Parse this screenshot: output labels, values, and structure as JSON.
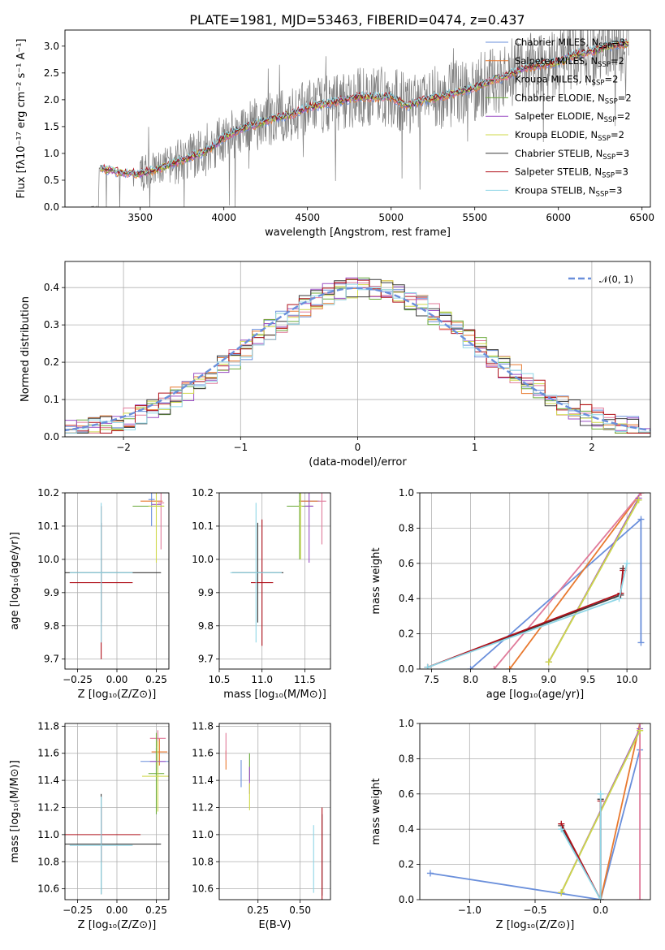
{
  "figure": {
    "title": "PLATE=1981, MJD=53463, FIBERID=0474, z=0.437"
  },
  "models": [
    {
      "name": "Chabrier MILES",
      "nssp": "3",
      "color": "#6a8fdb"
    },
    {
      "name": "Salpeter MILES",
      "nssp": "2",
      "color": "#e8792f"
    },
    {
      "name": "Kroupa MILES",
      "nssp": "2",
      "color": "#e07a9a"
    },
    {
      "name": "Chabrier ELODIE",
      "nssp": "2",
      "color": "#6aaa3a"
    },
    {
      "name": "Salpeter ELODIE",
      "nssp": "2",
      "color": "#9b4fc4"
    },
    {
      "name": "Kroupa ELODIE",
      "nssp": "2",
      "color": "#cfd84a"
    },
    {
      "name": "Chabrier STELIB",
      "nssp": "3",
      "color": "#3a3a3a"
    },
    {
      "name": "Salpeter STELIB",
      "nssp": "3",
      "color": "#b0101a"
    },
    {
      "name": "Kroupa STELIB",
      "nssp": "3",
      "color": "#8fd6e6"
    }
  ],
  "chart_data": [
    {
      "id": "spectrum",
      "type": "line",
      "xlabel": "wavelength [Angstrom, rest frame]",
      "ylabel": "Flux [fλ10⁻¹⁷ erg cm⁻² s⁻¹ A⁻¹]",
      "xlim": [
        3050,
        6550
      ],
      "ylim": [
        0,
        3.3
      ],
      "xticks": [
        "3500",
        "4000",
        "4500",
        "5000",
        "5500",
        "6000",
        "6500"
      ],
      "yticks": [
        "0.0",
        "0.5",
        "1.0",
        "1.5",
        "2.0",
        "2.5",
        "3.0"
      ],
      "legend_labels": [
        "Chabrier MILES, N_SSP=3",
        "Salpeter MILES, N_SSP=2",
        "Kroupa MILES, N_SSP=2",
        "Chabrier ELODIE, N_SSP=2",
        "Salpeter ELODIE, N_SSP=2",
        "Kroupa ELODIE, N_SSP=2",
        "Chabrier STELIB, N_SSP=3",
        "Salpeter STELIB, N_SSP=3",
        "Kroupa STELIB, N_SSP=3"
      ],
      "legend_position": "right, upper",
      "data_trend": [
        [
          3200,
          0.0
        ],
        [
          3250,
          0.0
        ],
        [
          3255,
          0.72
        ],
        [
          3300,
          0.7
        ],
        [
          3400,
          0.63
        ],
        [
          3500,
          0.62
        ],
        [
          3600,
          0.7
        ],
        [
          3700,
          0.82
        ],
        [
          3800,
          0.93
        ],
        [
          3900,
          1.05
        ],
        [
          4000,
          1.3
        ],
        [
          4100,
          1.45
        ],
        [
          4200,
          1.55
        ],
        [
          4300,
          1.65
        ],
        [
          4400,
          1.72
        ],
        [
          4500,
          1.85
        ],
        [
          4600,
          1.92
        ],
        [
          4700,
          1.98
        ],
        [
          4800,
          2.05
        ],
        [
          4900,
          2.05
        ],
        [
          5000,
          2.05
        ],
        [
          5100,
          1.88
        ],
        [
          5200,
          2.0
        ],
        [
          5300,
          2.05
        ],
        [
          5400,
          2.15
        ],
        [
          5500,
          2.22
        ],
        [
          5600,
          2.35
        ],
        [
          5700,
          2.45
        ],
        [
          5800,
          2.6
        ],
        [
          5900,
          2.65
        ],
        [
          6000,
          2.7
        ],
        [
          6100,
          2.85
        ],
        [
          6200,
          2.9
        ],
        [
          6300,
          3.0
        ],
        [
          6400,
          3.05
        ]
      ],
      "grid": false
    },
    {
      "id": "residuals",
      "type": "histogram",
      "xlabel": "(data-model)/error",
      "ylabel": "Normed distribution",
      "xlim": [
        -2.5,
        2.5
      ],
      "ylim": [
        0,
        0.47
      ],
      "xticks": [
        "−2",
        "−1",
        "0",
        "1",
        "2"
      ],
      "yticks": [
        "0.0",
        "0.1",
        "0.2",
        "0.3",
        "0.4"
      ],
      "bins": {
        "start": -2.5,
        "width": 0.1
      },
      "base": [
        0.02,
        0.02,
        0.03,
        0.035,
        0.04,
        0.045,
        0.05,
        0.055,
        0.06,
        0.065,
        0.07,
        0.085,
        0.1,
        0.115,
        0.13,
        0.145,
        0.17,
        0.2,
        0.235,
        0.265,
        0.3,
        0.33,
        0.355,
        0.37,
        0.38,
        0.39,
        0.38,
        0.36,
        0.375,
        0.38,
        0.39,
        0.4,
        0.41,
        0.4,
        0.39,
        0.38,
        0.37,
        0.355,
        0.34,
        0.32,
        0.3,
        0.27,
        0.24,
        0.21,
        0.18,
        0.16,
        0.14,
        0.12,
        0.105,
        0.09,
        0.075,
        0.065,
        0.055,
        0.05,
        0.045,
        0.045,
        0.04,
        0.035,
        0.03,
        0.03,
        0.025,
        0.025,
        0.02,
        0.02,
        0.02,
        0.02,
        0.02,
        0.015,
        0.015,
        0.015,
        0.015,
        0.015,
        0.015,
        0.015,
        0.015,
        0.01,
        0.01,
        0.01,
        0.01,
        0.01
      ],
      "gaussian_label": "𝒩(0, 1)",
      "gaussian_color": "#6a8fdb",
      "legend_position": "upper right",
      "grid": true
    },
    {
      "id": "age_vs_Z",
      "type": "errorbar",
      "xlabel": "Z [log₁₀(Z/Z⊙)]",
      "ylabel": "age  [log₁₀(age/yr)]",
      "xlim": [
        -0.33,
        0.33
      ],
      "ylim": [
        9.67,
        10.2
      ],
      "xticks": [
        -0.25,
        0.0,
        0.25
      ],
      "xtick_labels": [
        "−0.25",
        "0.00",
        "0.25"
      ],
      "yticks": [
        9.7,
        9.8,
        9.9,
        10.0,
        10.1,
        10.2
      ],
      "ytick_labels": [
        "9.7",
        "9.8",
        "9.9",
        "10.0",
        "10.1",
        "10.2"
      ],
      "points": [
        {
          "m": 0,
          "x": 0.22,
          "y": 10.18,
          "xe": 0.02,
          "ye": 0.08
        },
        {
          "m": 1,
          "x": 0.22,
          "y": 10.175,
          "xe": 0.07,
          "ye": 0.0
        },
        {
          "m": 2,
          "x": 0.28,
          "y": 10.17,
          "xe": 0.02,
          "ye": 0.14
        },
        {
          "m": 3,
          "x": 0.2,
          "y": 10.16,
          "xe": 0.1,
          "ye": 0.0
        },
        {
          "m": 4,
          "x": 0.25,
          "y": 10.165,
          "xe": 0.03,
          "ye": 0.0
        },
        {
          "m": 5,
          "x": 0.25,
          "y": 10.16,
          "xe": 0.05,
          "ye": 0.17
        },
        {
          "m": 6,
          "x": -0.1,
          "y": 9.96,
          "xe": 0.38,
          "ye": 0.15
        },
        {
          "m": 7,
          "x": -0.1,
          "y": 9.93,
          "xe": 0.2,
          "ye": 0.23
        },
        {
          "m": 8,
          "x": -0.1,
          "y": 9.96,
          "xe": 0.2,
          "ye": 0.21
        }
      ]
    },
    {
      "id": "age_vs_mass",
      "type": "errorbar",
      "xlabel": "mass [log₁₀(M/M⊙)]",
      "ylabel": "",
      "xlim": [
        10.5,
        11.8
      ],
      "ylim": [
        9.67,
        10.2
      ],
      "xticks": [
        10.5,
        11.0,
        11.5
      ],
      "xtick_labels": [
        "10.5",
        "11.0",
        "11.5"
      ],
      "yticks": [
        9.7,
        9.8,
        9.9,
        10.0,
        10.1,
        10.2
      ],
      "ytick_labels": [
        "9.7",
        "9.8",
        "9.9",
        "10.0",
        "10.1",
        "10.2"
      ],
      "points": [
        {
          "m": 0,
          "x": 11.55,
          "y": 10.175,
          "xe": 0.12,
          "ye": 0.0
        },
        {
          "m": 1,
          "x": 11.55,
          "y": 10.175,
          "xe": 0.1,
          "ye": 0.0
        },
        {
          "m": 2,
          "x": 11.7,
          "y": 10.175,
          "xe": 0.05,
          "ye": 0.13
        },
        {
          "m": 3,
          "x": 11.44,
          "y": 10.16,
          "xe": 0.15,
          "ye": 0.16
        },
        {
          "m": 4,
          "x": 11.55,
          "y": 10.16,
          "xe": 0.05,
          "ye": 0.17
        },
        {
          "m": 5,
          "x": 11.45,
          "y": 10.16,
          "xe": 0.02,
          "ye": 0.16
        },
        {
          "m": 6,
          "x": 10.95,
          "y": 9.96,
          "xe": 0.3,
          "ye": 0.15
        },
        {
          "m": 7,
          "x": 11.0,
          "y": 9.93,
          "xe": 0.13,
          "ye": 0.19
        },
        {
          "m": 8,
          "x": 10.93,
          "y": 9.96,
          "xe": 0.3,
          "ye": 0.21
        }
      ]
    },
    {
      "id": "weight_vs_age",
      "type": "line",
      "xlabel": "age  [log₁₀(age/yr)]",
      "ylabel": "mass weight",
      "xlim": [
        7.35,
        10.3
      ],
      "ylim": [
        0,
        1
      ],
      "xticks": [
        7.5,
        8.0,
        8.5,
        9.0,
        9.5,
        10.0
      ],
      "xtick_labels": [
        "7.5",
        "8.0",
        "8.5",
        "9.0",
        "9.5",
        "10.0"
      ],
      "yticks": [
        0,
        0.2,
        0.4,
        0.6,
        0.8,
        1.0
      ],
      "ytick_labels": [
        "0.0",
        "0.2",
        "0.4",
        "0.6",
        "0.8",
        "1.0"
      ],
      "series": [
        {
          "m": 0,
          "points": [
            [
              8.0,
              0.0
            ],
            [
              10.18,
              0.85
            ],
            [
              10.18,
              0.15
            ]
          ]
        },
        {
          "m": 1,
          "points": [
            [
              8.5,
              0.0
            ],
            [
              10.18,
              1.0
            ]
          ]
        },
        {
          "m": 2,
          "points": [
            [
              8.3,
              0.0
            ],
            [
              10.18,
              1.0
            ]
          ]
        },
        {
          "m": 3,
          "points": [
            [
              9.0,
              0.04
            ],
            [
              10.15,
              0.96
            ]
          ]
        },
        {
          "m": 4,
          "points": [
            [
              9.0,
              0.04
            ],
            [
              10.15,
              0.97
            ]
          ]
        },
        {
          "m": 5,
          "points": [
            [
              9.0,
              0.04
            ],
            [
              10.15,
              0.96
            ]
          ]
        },
        {
          "m": 6,
          "points": [
            [
              7.45,
              0.01
            ],
            [
              9.92,
              0.42
            ],
            [
              9.95,
              0.57
            ]
          ]
        },
        {
          "m": 7,
          "points": [
            [
              7.45,
              0.01
            ],
            [
              9.92,
              0.43
            ],
            [
              9.95,
              0.56
            ]
          ]
        },
        {
          "m": 8,
          "points": [
            [
              7.45,
              0.01
            ],
            [
              9.9,
              0.4
            ],
            [
              10.0,
              0.6
            ]
          ]
        }
      ]
    },
    {
      "id": "mass_vs_Z",
      "type": "errorbar",
      "xlabel": "Z [log₁₀(Z/Z⊙)]",
      "ylabel": "mass [log₁₀(M/M⊙)]",
      "xlim": [
        -0.33,
        0.33
      ],
      "ylim": [
        10.52,
        11.82
      ],
      "xticks": [
        -0.25,
        0.0,
        0.25
      ],
      "xtick_labels": [
        "−0.25",
        "0.00",
        "0.25"
      ],
      "yticks": [
        10.6,
        10.8,
        11.0,
        11.2,
        11.4,
        11.6,
        11.8
      ],
      "ytick_labels": [
        "10.6",
        "10.8",
        "11.0",
        "11.2",
        "11.4",
        "11.6",
        "11.8"
      ],
      "points": [
        {
          "m": 0,
          "x": 0.25,
          "y": 11.54,
          "xe": 0.1,
          "ye": 0.1
        },
        {
          "m": 1,
          "x": 0.27,
          "y": 11.61,
          "xe": 0.05,
          "ye": 0.1
        },
        {
          "m": 2,
          "x": 0.26,
          "y": 11.71,
          "xe": 0.05,
          "ye": 0.06
        },
        {
          "m": 3,
          "x": 0.25,
          "y": 11.45,
          "xe": 0.05,
          "ye": 0.3
        },
        {
          "m": 4,
          "x": 0.26,
          "y": 11.54,
          "xe": 0.05,
          "ye": 0.06
        },
        {
          "m": 5,
          "x": 0.26,
          "y": 11.43,
          "xe": 0.1,
          "ye": 0.26
        },
        {
          "m": 6,
          "x": -0.1,
          "y": 10.93,
          "xe": 0.38,
          "ye": 0.37
        },
        {
          "m": 7,
          "x": -0.1,
          "y": 11.0,
          "xe": 0.25,
          "ye": 0.2
        },
        {
          "m": 8,
          "x": -0.1,
          "y": 10.92,
          "xe": 0.2,
          "ye": 0.36
        }
      ]
    },
    {
      "id": "mass_vs_EBV",
      "type": "errorbar",
      "xlabel": "E(B-V)",
      "ylabel": "",
      "xlim": [
        0.02,
        0.68
      ],
      "ylim": [
        10.52,
        11.82
      ],
      "xticks": [
        0.25,
        0.5
      ],
      "xtick_labels": [
        "0.25",
        "0.50"
      ],
      "yticks": [
        10.6,
        10.8,
        11.0,
        11.2,
        11.4,
        11.6,
        11.8
      ],
      "ytick_labels": [
        "10.6",
        "10.8",
        "11.0",
        "11.2",
        "11.4",
        "11.6",
        "11.8"
      ],
      "points": [
        {
          "m": 0,
          "x": 0.15,
          "y": 11.45,
          "xe": 0,
          "ye": 0.1
        },
        {
          "m": 1,
          "x": 0.06,
          "y": 11.55,
          "xe": 0,
          "ye": 0.07
        },
        {
          "m": 2,
          "x": 0.06,
          "y": 11.65,
          "xe": 0,
          "ye": 0.1
        },
        {
          "m": 3,
          "x": 0.2,
          "y": 11.5,
          "xe": 0,
          "ye": 0.1
        },
        {
          "m": 4,
          "x": 0.2,
          "y": 11.4,
          "xe": 0,
          "ye": 0.1
        },
        {
          "m": 5,
          "x": 0.2,
          "y": 11.28,
          "xe": 0,
          "ye": 0.1
        },
        {
          "m": 6,
          "x": 0.63,
          "y": 10.85,
          "xe": 0,
          "ye": 0.3
        },
        {
          "m": 7,
          "x": 0.63,
          "y": 10.85,
          "xe": 0,
          "ye": 0.35
        },
        {
          "m": 8,
          "x": 0.58,
          "y": 10.82,
          "xe": 0,
          "ye": 0.25
        }
      ]
    },
    {
      "id": "weight_vs_Z",
      "type": "line",
      "xlabel": "Z [log₁₀(Z/Z⊙)]",
      "ylabel": "mass weight",
      "xlim": [
        -1.38,
        0.38
      ],
      "ylim": [
        0,
        1
      ],
      "xticks": [
        -1.0,
        -0.5,
        0.0
      ],
      "xtick_labels": [
        "−1.0",
        "−0.5",
        "0.0"
      ],
      "yticks": [
        0,
        0.2,
        0.4,
        0.6,
        0.8,
        1.0
      ],
      "ytick_labels": [
        "0.0",
        "0.2",
        "0.4",
        "0.6",
        "0.8",
        "1.0"
      ],
      "series": [
        {
          "m": 0,
          "points": [
            [
              -1.3,
              0.15
            ],
            [
              0.0,
              0.0
            ],
            [
              0.3,
              0.85
            ]
          ]
        },
        {
          "m": 1,
          "points": [
            [
              0.0,
              0.0
            ],
            [
              0.3,
              1.0
            ]
          ]
        },
        {
          "m": 2,
          "points": [
            [
              0.3,
              0.0
            ],
            [
              0.3,
              1.0
            ]
          ]
        },
        {
          "m": 3,
          "points": [
            [
              -0.3,
              0.04
            ],
            [
              0.3,
              0.96
            ]
          ]
        },
        {
          "m": 4,
          "points": [
            [
              -0.3,
              0.04
            ],
            [
              0.3,
              0.97
            ]
          ]
        },
        {
          "m": 5,
          "points": [
            [
              -0.3,
              0.04
            ],
            [
              0.3,
              0.96
            ]
          ]
        },
        {
          "m": 6,
          "points": [
            [
              -0.3,
              0.42
            ],
            [
              0.0,
              0.0
            ],
            [
              0.0,
              0.57
            ]
          ]
        },
        {
          "m": 7,
          "points": [
            [
              -0.3,
              0.43
            ],
            [
              0.0,
              0.0
            ],
            [
              0.0,
              0.56
            ]
          ]
        },
        {
          "m": 8,
          "points": [
            [
              -0.3,
              0.4
            ],
            [
              0.0,
              0.0
            ],
            [
              0.0,
              0.6
            ]
          ]
        }
      ]
    }
  ]
}
